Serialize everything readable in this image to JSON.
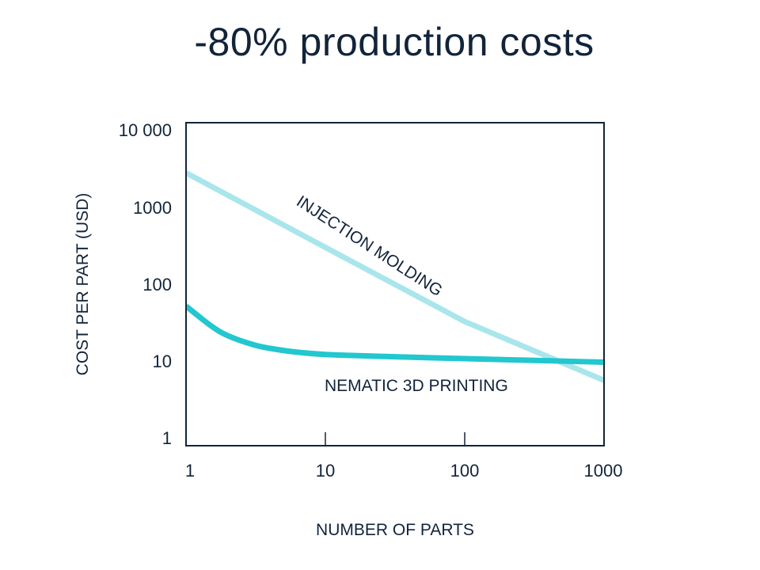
{
  "chart_data": {
    "type": "line",
    "title": "-80% production costs",
    "xlabel": "NUMBER OF PARTS",
    "ylabel": "COST PER PART (USD)",
    "x_scale": "log",
    "y_scale": "log",
    "xlim": [
      1,
      2000
    ],
    "ylim": [
      1,
      10000
    ],
    "grid": false,
    "legend": "none",
    "x_ticks": [
      {
        "value": 1,
        "label": "1"
      },
      {
        "value": 10,
        "label": "10"
      },
      {
        "value": 100,
        "label": "100"
      },
      {
        "value": 1000,
        "label": "1000"
      }
    ],
    "y_ticks": [
      {
        "value": 1,
        "label": "1"
      },
      {
        "value": 10,
        "label": "10"
      },
      {
        "value": 100,
        "label": "100"
      },
      {
        "value": 1000,
        "label": "1000"
      },
      {
        "value": 10000,
        "label": "10 000"
      }
    ],
    "series": [
      {
        "name": "INJECTION MOLDING",
        "color": "#a9e6ec",
        "x": [
          1,
          10,
          100,
          2000
        ],
        "y": [
          2800,
          320,
          37,
          4
        ]
      },
      {
        "name": "NEMATIC 3D PRINTING",
        "color": "#22c7cf",
        "x": [
          1,
          1.5,
          2,
          3,
          4,
          6,
          10,
          20,
          50,
          100,
          300,
          2000
        ],
        "y": [
          58,
          33,
          24.5,
          19,
          17,
          15.3,
          14.2,
          13.6,
          13,
          12.6,
          12,
          11
        ]
      }
    ]
  }
}
